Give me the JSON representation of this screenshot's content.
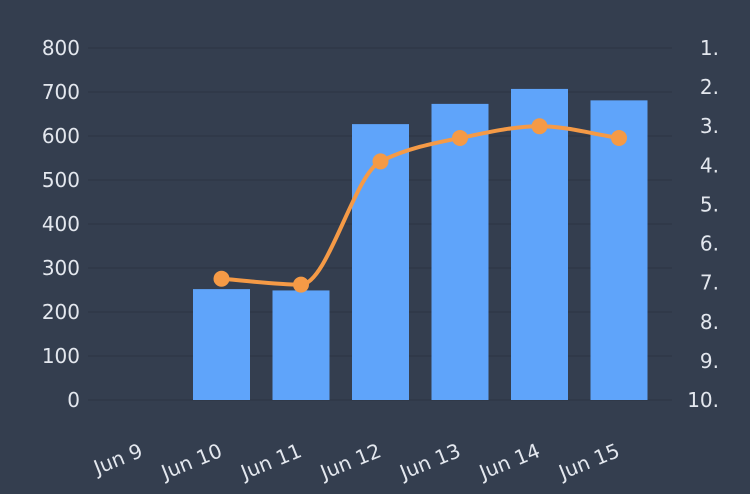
{
  "chart_data": {
    "type": "bar",
    "categories": [
      "Jun 9",
      "Jun 10",
      "Jun 11",
      "Jun 12",
      "Jun 13",
      "Jun 14",
      "Jun 15"
    ],
    "series": [
      {
        "type": "bar",
        "axis": "left",
        "color": "#5fa4fa",
        "values": [
          null,
          252,
          249,
          627,
          673,
          707,
          681
        ]
      },
      {
        "type": "line",
        "axis": "right",
        "color": "#f59a46",
        "values": [
          null,
          6.9,
          7.05,
          3.9,
          3.3,
          3.0,
          3.3
        ]
      }
    ],
    "y_left": {
      "min": 0,
      "max": 800,
      "ticks": [
        "0",
        "100",
        "200",
        "300",
        "400",
        "500",
        "600",
        "700",
        "800"
      ]
    },
    "y_right": {
      "min": 1,
      "max": 10,
      "inverted": true,
      "ticks": [
        "1.",
        "2.",
        "3.",
        "4.",
        "5.",
        "6.",
        "7.",
        "8.",
        "9.",
        "10."
      ]
    },
    "grid": true,
    "legend": "none"
  }
}
